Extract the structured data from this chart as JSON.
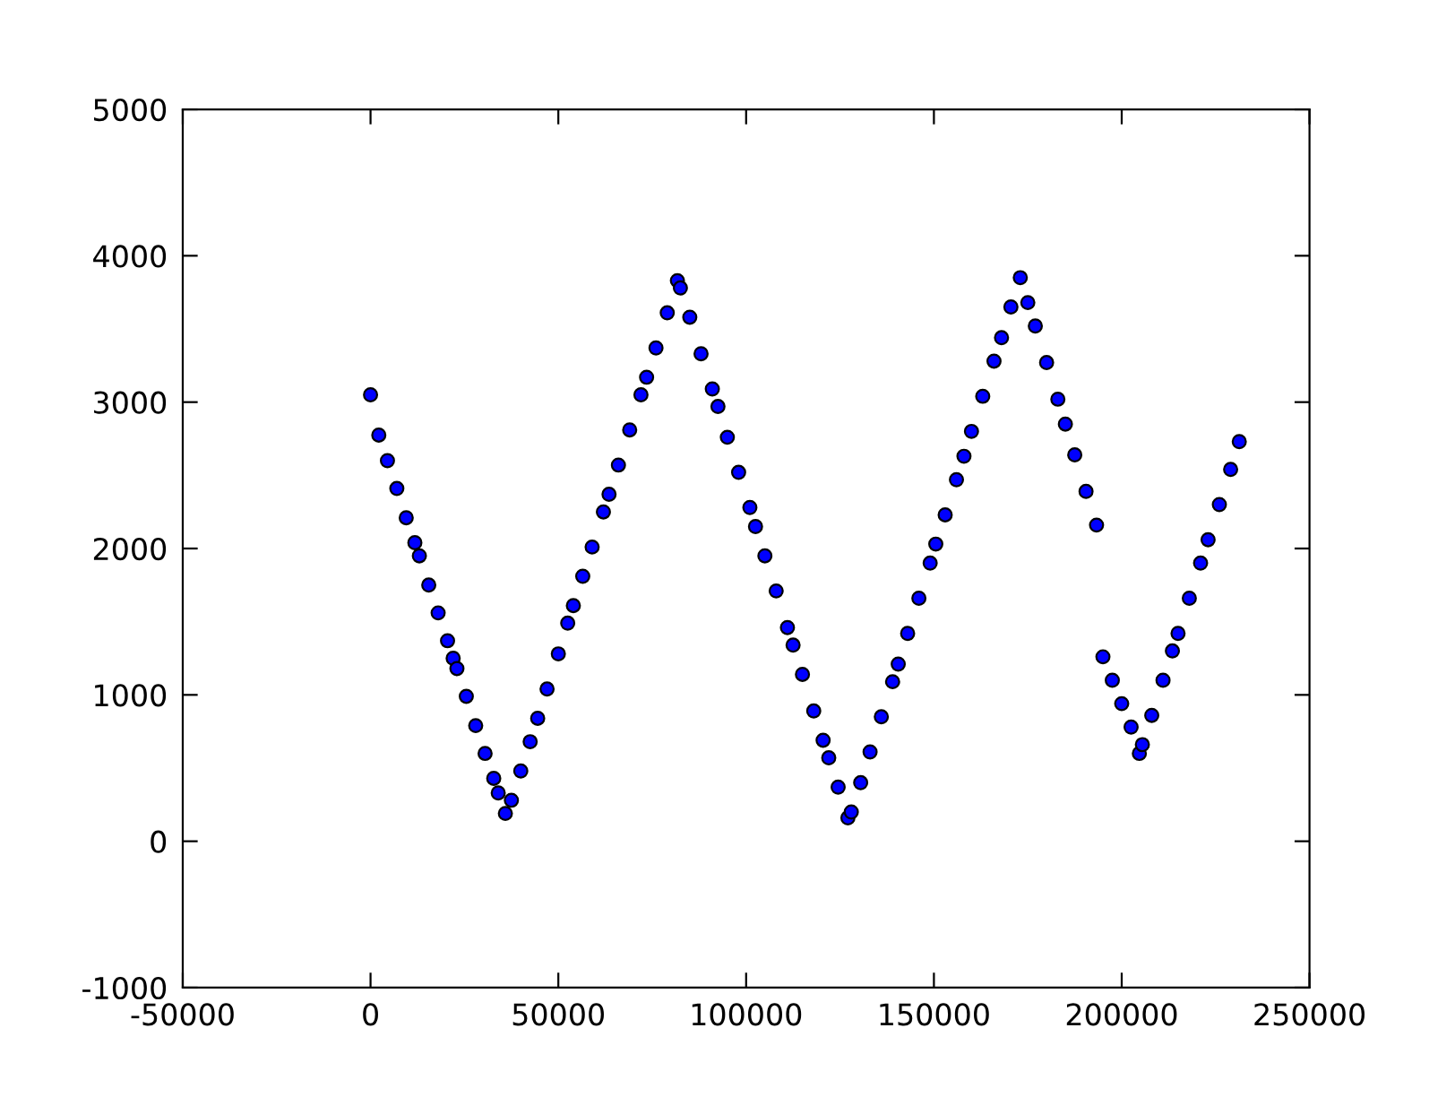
{
  "chart_data": {
    "type": "scatter",
    "color": "#0000ff",
    "marker": "circle",
    "x": [
      0,
      2200,
      4500,
      7000,
      9500,
      11800,
      13000,
      15500,
      18000,
      20500,
      22000,
      23000,
      25500,
      28000,
      30500,
      32800,
      34000,
      35900,
      37500,
      40000,
      42500,
      44500,
      47000,
      50000,
      52500,
      54000,
      56500,
      59000,
      62000,
      63500,
      66000,
      69000,
      72000,
      73500,
      76000,
      79000,
      81700,
      82500,
      85000,
      88000,
      91000,
      92500,
      95000,
      98000,
      101000,
      102500,
      105000,
      108000,
      111000,
      112500,
      115000,
      118000,
      120500,
      122000,
      124500,
      127100,
      128000,
      130500,
      133000,
      136000,
      139000,
      140500,
      143000,
      146000,
      149000,
      150500,
      153000,
      156000,
      158000,
      160000,
      163000,
      166000,
      168000,
      170500,
      173000,
      175000,
      177000,
      180000,
      183000,
      185000,
      187500,
      190500,
      193300,
      195000,
      197500,
      200000,
      202500,
      204700,
      205500,
      208000,
      211000,
      213500,
      215000,
      218000,
      221000,
      223000,
      226000,
      229000,
      231300
    ],
    "values": [
      3050,
      2775,
      2600,
      2410,
      2210,
      2040,
      1950,
      1750,
      1560,
      1370,
      1250,
      1180,
      990,
      790,
      600,
      430,
      330,
      190,
      280,
      480,
      680,
      840,
      1040,
      1280,
      1490,
      1610,
      1810,
      2010,
      2250,
      2370,
      2570,
      2810,
      3050,
      3170,
      3370,
      3610,
      3830,
      3780,
      3580,
      3330,
      3090,
      2970,
      2760,
      2520,
      2280,
      2150,
      1950,
      1710,
      1460,
      1340,
      1140,
      890,
      690,
      570,
      370,
      160,
      200,
      400,
      610,
      850,
      1090,
      1210,
      1420,
      1660,
      1900,
      2030,
      2230,
      2470,
      2630,
      2800,
      3040,
      3280,
      3440,
      3650,
      3850,
      3680,
      3520,
      3270,
      3020,
      2850,
      2640,
      2390,
      2160,
      1260,
      1100,
      940,
      780,
      600,
      660,
      860,
      1100,
      1300,
      1420,
      1660,
      1900,
      2060,
      2300,
      2540,
      2730
    ],
    "xlim": [
      -50000,
      250000
    ],
    "xticks": [
      -50000,
      0,
      50000,
      100000,
      150000,
      200000,
      250000
    ],
    "ylim": [
      -1000,
      5000
    ],
    "yticks": [
      -1000,
      0,
      1000,
      2000,
      3000,
      4000,
      5000
    ],
    "grid": false
  }
}
